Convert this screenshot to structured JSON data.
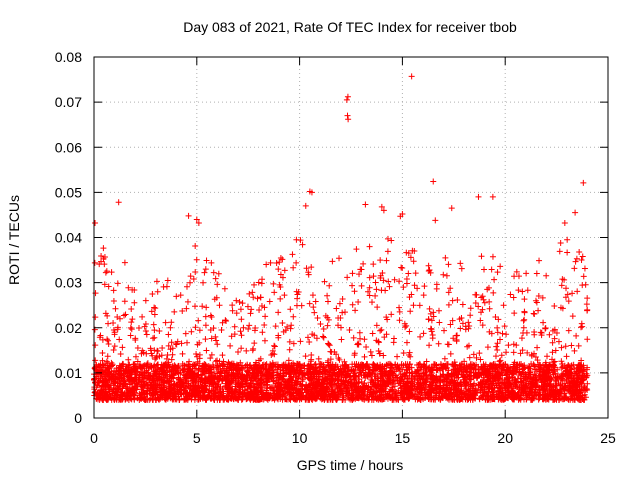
{
  "chart_data": {
    "type": "scatter",
    "title": "Day 083 of 2021, Rate Of TEC Index for receiver tbob",
    "xlabel": "GPS time / hours",
    "ylabel": "ROTI / TECUs",
    "xlim": [
      0,
      25
    ],
    "ylim": [
      0,
      0.08
    ],
    "xticks": [
      0,
      5,
      10,
      15,
      20,
      25
    ],
    "xtick_labels": [
      "0",
      "5",
      "10",
      "15",
      "20",
      "25"
    ],
    "yticks": [
      0,
      0.01,
      0.02,
      0.03,
      0.04,
      0.05,
      0.06,
      0.07,
      0.08
    ],
    "ytick_labels": [
      "0",
      "0.01",
      "0.02",
      "0.03",
      "0.04",
      "0.05",
      "0.06",
      "0.07",
      "0.08"
    ],
    "grid": true,
    "marker": "plus",
    "color": "#ff0000",
    "data_x_range_hours": [
      0,
      24
    ],
    "baseline_band": [
      0.004,
      0.012
    ],
    "notable_points": [
      {
        "x": 12.35,
        "y": 0.0712
      },
      {
        "x": 12.3,
        "y": 0.0705
      },
      {
        "x": 12.33,
        "y": 0.067
      },
      {
        "x": 12.36,
        "y": 0.0662
      },
      {
        "x": 15.45,
        "y": 0.0757
      },
      {
        "x": 16.5,
        "y": 0.0524
      },
      {
        "x": 23.8,
        "y": 0.0521
      },
      {
        "x": 10.5,
        "y": 0.0502
      },
      {
        "x": 10.6,
        "y": 0.05
      },
      {
        "x": 18.7,
        "y": 0.049
      },
      {
        "x": 19.4,
        "y": 0.049
      },
      {
        "x": 1.2,
        "y": 0.0478
      },
      {
        "x": 13.2,
        "y": 0.0473
      },
      {
        "x": 14.0,
        "y": 0.0468
      },
      {
        "x": 14.1,
        "y": 0.046
      },
      {
        "x": 17.4,
        "y": 0.0465
      },
      {
        "x": 15.0,
        "y": 0.0452
      },
      {
        "x": 14.9,
        "y": 0.0447
      },
      {
        "x": 0.05,
        "y": 0.0432
      },
      {
        "x": 4.6,
        "y": 0.0448
      },
      {
        "x": 5.0,
        "y": 0.044
      },
      {
        "x": 5.1,
        "y": 0.0432
      },
      {
        "x": 10.3,
        "y": 0.047
      },
      {
        "x": 16.6,
        "y": 0.0438
      },
      {
        "x": 22.9,
        "y": 0.0432
      },
      {
        "x": 23.4,
        "y": 0.0455
      }
    ],
    "envelope": [
      {
        "t": 0,
        "upper": 0.04
      },
      {
        "t": 1,
        "upper": 0.036
      },
      {
        "t": 2,
        "upper": 0.033
      },
      {
        "t": 3,
        "upper": 0.032
      },
      {
        "t": 4,
        "upper": 0.03
      },
      {
        "t": 5,
        "upper": 0.04
      },
      {
        "t": 6,
        "upper": 0.033
      },
      {
        "t": 7,
        "upper": 0.026
      },
      {
        "t": 8,
        "upper": 0.032
      },
      {
        "t": 9,
        "upper": 0.038
      },
      {
        "t": 10,
        "upper": 0.04
      },
      {
        "t": 11,
        "upper": 0.033
      },
      {
        "t": 12,
        "upper": 0.036
      },
      {
        "t": 13,
        "upper": 0.038
      },
      {
        "t": 14,
        "upper": 0.04
      },
      {
        "t": 15,
        "upper": 0.04
      },
      {
        "t": 16,
        "upper": 0.036
      },
      {
        "t": 17,
        "upper": 0.036
      },
      {
        "t": 18,
        "upper": 0.034
      },
      {
        "t": 19,
        "upper": 0.04
      },
      {
        "t": 20,
        "upper": 0.032
      },
      {
        "t": 21,
        "upper": 0.034
      },
      {
        "t": 22,
        "upper": 0.038
      },
      {
        "t": 23,
        "upper": 0.04
      },
      {
        "t": 24,
        "upper": 0.036
      }
    ]
  }
}
